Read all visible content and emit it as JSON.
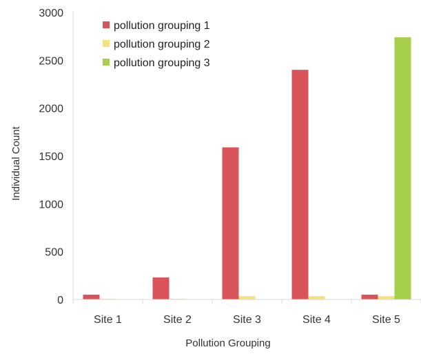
{
  "chart_data": {
    "type": "bar",
    "title": "",
    "xlabel": "Pollution Grouping",
    "ylabel": "Individual Count",
    "categories": [
      "Site 1",
      "Site 2",
      "Site 3",
      "Site 4",
      "Site 5"
    ],
    "ylim": [
      0,
      3000
    ],
    "yticks": [
      "0",
      "500",
      "1000",
      "1500",
      "2000",
      "2500",
      "3000"
    ],
    "grid": false,
    "legend_position": "top-left",
    "series": [
      {
        "name": "pollution grouping 1",
        "color": "#d9545a",
        "values": [
          50,
          230,
          1590,
          2400,
          50
        ]
      },
      {
        "name": "pollution grouping 2",
        "color": "#f5e27a",
        "values": [
          8,
          8,
          35,
          35,
          35
        ]
      },
      {
        "name": "pollution grouping 3",
        "color": "#a6cf4a",
        "values": [
          0,
          0,
          0,
          0,
          2740
        ]
      }
    ]
  }
}
